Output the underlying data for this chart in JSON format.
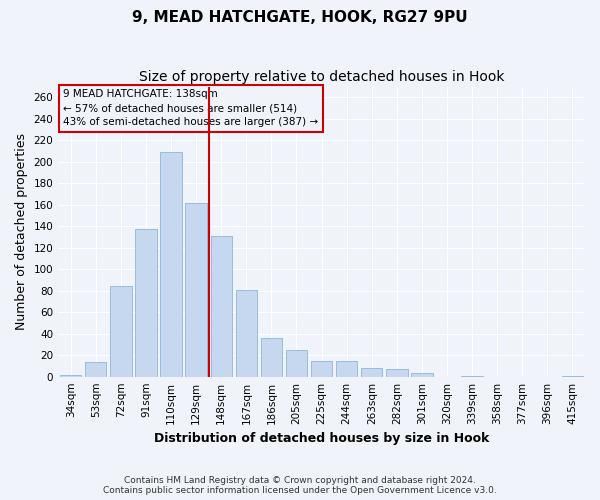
{
  "title1": "9, MEAD HATCHGATE, HOOK, RG27 9PU",
  "title2": "Size of property relative to detached houses in Hook",
  "xlabel": "Distribution of detached houses by size in Hook",
  "ylabel": "Number of detached properties",
  "categories": [
    "34sqm",
    "53sqm",
    "72sqm",
    "91sqm",
    "110sqm",
    "129sqm",
    "148sqm",
    "167sqm",
    "186sqm",
    "205sqm",
    "225sqm",
    "244sqm",
    "263sqm",
    "282sqm",
    "301sqm",
    "320sqm",
    "339sqm",
    "358sqm",
    "377sqm",
    "396sqm",
    "415sqm"
  ],
  "values": [
    2,
    14,
    84,
    137,
    209,
    162,
    131,
    81,
    36,
    25,
    15,
    15,
    8,
    7,
    3,
    0,
    1,
    0,
    0,
    0,
    1
  ],
  "bar_color": "#c5d8f0",
  "bar_edge_color": "#7aadd4",
  "vline_x": 5.5,
  "vline_color": "#cc0000",
  "annotation_text": "9 MEAD HATCHGATE: 138sqm\n← 57% of detached houses are smaller (514)\n43% of semi-detached houses are larger (387) →",
  "annotation_box_color": "#cc0000",
  "ylim": [
    0,
    270
  ],
  "yticks": [
    0,
    20,
    40,
    60,
    80,
    100,
    120,
    140,
    160,
    180,
    200,
    220,
    240,
    260
  ],
  "footer1": "Contains HM Land Registry data © Crown copyright and database right 2024.",
  "footer2": "Contains public sector information licensed under the Open Government Licence v3.0.",
  "bg_color": "#f0f4fa",
  "grid_color": "#ffffff",
  "title1_fontsize": 11,
  "title2_fontsize": 10,
  "xlabel_fontsize": 9,
  "ylabel_fontsize": 9,
  "tick_fontsize": 7.5
}
